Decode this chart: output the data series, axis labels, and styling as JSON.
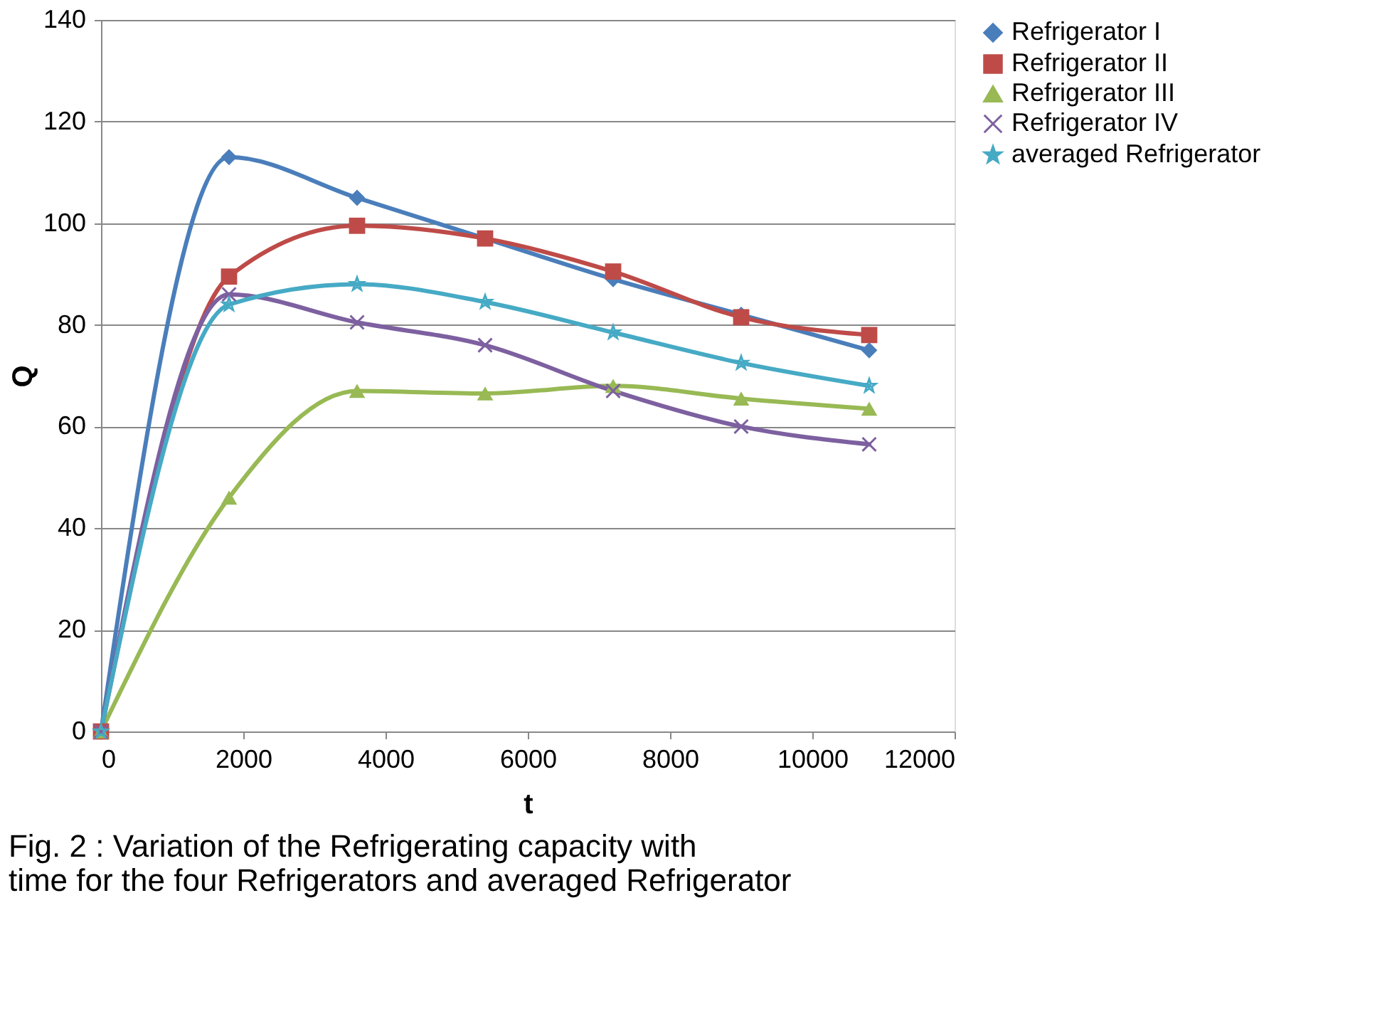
{
  "chart_data": {
    "type": "line",
    "xlabel": "t",
    "ylabel": "Q",
    "x": [
      0,
      1800,
      3600,
      5400,
      7200,
      9000,
      10800
    ],
    "xlim": [
      0,
      12000
    ],
    "xticks": [
      0,
      2000,
      4000,
      6000,
      8000,
      10000,
      12000
    ],
    "ylim": [
      0,
      140
    ],
    "yticks": [
      0,
      20,
      40,
      60,
      80,
      100,
      120,
      140
    ],
    "grid": "y",
    "legend": "right",
    "series": [
      {
        "name": "Refrigerator I",
        "color": "#4a7ebb",
        "marker": "diamond",
        "values": [
          0,
          113,
          105,
          97,
          89,
          82,
          75
        ]
      },
      {
        "name": "Refrigerator II",
        "color": "#be4b48",
        "marker": "square",
        "values": [
          0,
          89.5,
          99.5,
          97,
          90.5,
          81.5,
          78
        ]
      },
      {
        "name": "Refrigerator III",
        "color": "#98b954",
        "marker": "triangle",
        "values": [
          0,
          46,
          67,
          66.5,
          68,
          65.5,
          63.5
        ]
      },
      {
        "name": "Refrigerator IV",
        "color": "#7d60a0",
        "marker": "cross",
        "values": [
          0,
          86,
          80.5,
          76,
          67,
          60,
          56.5
        ]
      },
      {
        "name": "averaged Refrigerator",
        "color": "#46aac5",
        "marker": "star",
        "values": [
          0,
          84,
          88,
          84.5,
          78.5,
          72.5,
          68
        ]
      }
    ],
    "annotations": [
      "Fig. 2  : Variation of the Refrigerating capacity with time for the four Refrigerators and averaged Refrigerator"
    ]
  }
}
